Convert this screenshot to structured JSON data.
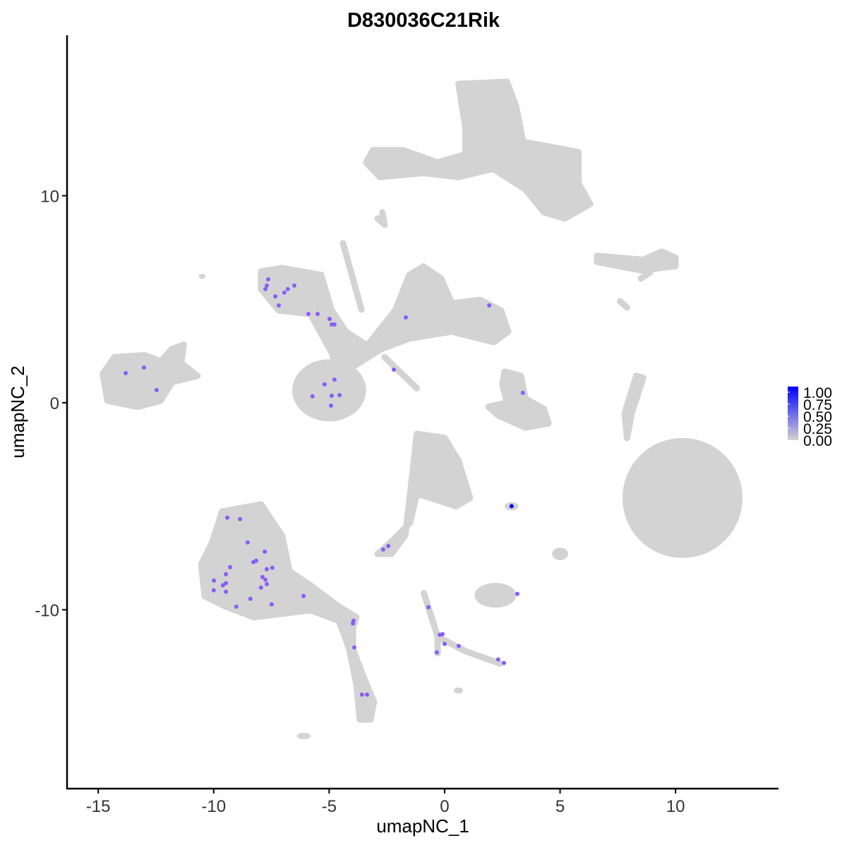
{
  "chart_data": {
    "type": "scatter",
    "title": "D830036C21Rik",
    "xlabel": "umapNC_1",
    "ylabel": "umapNC_2",
    "xlim": [
      -16.35,
      14.46
    ],
    "ylim": [
      -18.64,
      17.75
    ],
    "xticks": [
      -15,
      -10,
      -5,
      0,
      5,
      10
    ],
    "xtick_labels": [
      "-15",
      "-10",
      "-5",
      "0",
      "5",
      "10"
    ],
    "yticks": [
      -10,
      0,
      10
    ],
    "ytick_labels": [
      "-10",
      "0",
      "10"
    ],
    "grid": false,
    "legend": {
      "position": "right",
      "type": "colorbar",
      "labels": [
        "1.00",
        "0.75",
        "0.50",
        "0.25",
        "0.00"
      ],
      "range": [
        0,
        1
      ],
      "low_color": "#d3d3d3",
      "high_color": "#0000ff"
    },
    "colors": {
      "background_cells": "#d3d3d3",
      "expressed": "#8a5cf6",
      "max": "#0a0af0"
    },
    "clusters": [
      {
        "name": "top",
        "poly": [
          [
            0.6,
            15.4
          ],
          [
            2.7,
            15.5
          ],
          [
            3.1,
            14.3
          ],
          [
            3.4,
            12.6
          ],
          [
            4.9,
            12.3
          ],
          [
            5.8,
            12.1
          ],
          [
            5.8,
            10.6
          ],
          [
            6.3,
            9.6
          ],
          [
            5.2,
            8.9
          ],
          [
            4.3,
            9.2
          ],
          [
            3.5,
            10.3
          ],
          [
            2.1,
            11.3
          ],
          [
            0.6,
            10.9
          ],
          [
            -0.9,
            11.1
          ],
          [
            -2.8,
            10.9
          ],
          [
            -3.4,
            11.6
          ],
          [
            -3.1,
            12.2
          ],
          [
            -1.8,
            12.2
          ],
          [
            -0.3,
            11.6
          ],
          [
            0.9,
            12.0
          ],
          [
            0.9,
            13.3
          ]
        ]
      },
      {
        "name": "right-strip",
        "poly": [
          [
            6.6,
            7.1
          ],
          [
            8.6,
            6.9
          ],
          [
            9.4,
            7.3
          ],
          [
            10.0,
            7.0
          ],
          [
            10.0,
            6.6
          ],
          [
            8.5,
            6.4
          ],
          [
            6.6,
            6.8
          ]
        ]
      },
      {
        "name": "right-big",
        "ellipse": [
          10.3,
          -4.6,
          2.6,
          2.9
        ]
      },
      {
        "name": "right-thin",
        "poly": [
          [
            8.3,
            1.3
          ],
          [
            8.6,
            1.2
          ],
          [
            8.1,
            -0.5
          ],
          [
            7.9,
            -1.7
          ],
          [
            7.8,
            -0.5
          ]
        ]
      },
      {
        "name": "left",
        "poly": [
          [
            -14.8,
            1.4
          ],
          [
            -14.3,
            2.2
          ],
          [
            -13,
            2.3
          ],
          [
            -12.3,
            2.0
          ],
          [
            -11.8,
            2.6
          ],
          [
            -11.3,
            2.8
          ],
          [
            -11.4,
            1.9
          ],
          [
            -10.7,
            1.3
          ],
          [
            -11.8,
            1.0
          ],
          [
            -12.3,
            0.1
          ],
          [
            -13.3,
            -0.2
          ],
          [
            -14.6,
            0.1
          ]
        ]
      },
      {
        "name": "middle-loop",
        "ellipse": [
          -5.0,
          0.6,
          1.6,
          1.5
        ]
      },
      {
        "name": "middle-body",
        "poly": [
          [
            -7.95,
            6.34
          ],
          [
            -7.03,
            6.51
          ],
          [
            -5.35,
            6.17
          ],
          [
            -4.89,
            4.46
          ],
          [
            -4.28,
            3.44
          ],
          [
            -3.36,
            2.76
          ],
          [
            -2.14,
            4.46
          ],
          [
            -1.53,
            6.17
          ],
          [
            -0.92,
            6.58
          ],
          [
            -0.15,
            6.0
          ],
          [
            0.31,
            4.8
          ],
          [
            1.53,
            4.97
          ],
          [
            2.44,
            4.46
          ],
          [
            2.75,
            3.44
          ],
          [
            2.14,
            2.93
          ],
          [
            0.31,
            3.44
          ],
          [
            -1.53,
            3.1
          ],
          [
            -2.75,
            2.59
          ],
          [
            -3.97,
            1.74
          ],
          [
            -4.58,
            1.4
          ],
          [
            -4.89,
            2.42
          ],
          [
            -5.81,
            4.29
          ],
          [
            -7.18,
            4.46
          ],
          [
            -7.95,
            5.49
          ]
        ]
      },
      {
        "name": "middle-spike",
        "line": [
          [
            -4.4,
            7.7
          ],
          [
            -3.6,
            4.5
          ]
        ]
      },
      {
        "name": "middle-tail",
        "line": [
          [
            -2.6,
            2.2
          ],
          [
            -1.2,
            0.7
          ]
        ]
      },
      {
        "name": "small-right",
        "poly": [
          [
            2.6,
            1.5
          ],
          [
            3.3,
            1.3
          ],
          [
            3.5,
            0.2
          ],
          [
            4.3,
            -0.3
          ],
          [
            4.5,
            -1.0
          ],
          [
            3.5,
            -1.2
          ],
          [
            2.3,
            -0.6
          ],
          [
            1.9,
            -0.2
          ],
          [
            2.7,
            0.0
          ],
          [
            2.5,
            0.9
          ]
        ]
      },
      {
        "name": "lower-mid",
        "poly": [
          [
            -1.2,
            -1.5
          ],
          [
            0.0,
            -1.7
          ],
          [
            0.6,
            -2.8
          ],
          [
            1.1,
            -4.6
          ],
          [
            0.5,
            -5.0
          ],
          [
            -0.6,
            -4.6
          ],
          [
            -1.2,
            -4.4
          ],
          [
            -1.5,
            -5.8
          ],
          [
            -2.2,
            -6.6
          ],
          [
            -2.9,
            -7.3
          ],
          [
            -2.3,
            -7.3
          ],
          [
            -1.7,
            -6.4
          ],
          [
            -1.4,
            -3.5
          ]
        ]
      },
      {
        "name": "dot",
        "ellipse": [
          2.9,
          -5.0,
          0.3,
          0.2
        ]
      },
      {
        "name": "lower-left",
        "poly": [
          [
            -9.63,
            -5.25
          ],
          [
            -7.95,
            -4.91
          ],
          [
            -7.03,
            -6.44
          ],
          [
            -6.72,
            -8.14
          ],
          [
            -5.81,
            -8.82
          ],
          [
            -4.58,
            -9.85
          ],
          [
            -3.82,
            -10.36
          ],
          [
            -3.97,
            -10.87
          ],
          [
            -3.97,
            -11.89
          ],
          [
            -3.51,
            -13.25
          ],
          [
            -3.06,
            -14.45
          ],
          [
            -3.21,
            -15.3
          ],
          [
            -3.67,
            -15.3
          ],
          [
            -3.82,
            -13.6
          ],
          [
            -4.13,
            -11.89
          ],
          [
            -4.58,
            -10.53
          ],
          [
            -5.81,
            -10.02
          ],
          [
            -7.03,
            -10.19
          ],
          [
            -8.25,
            -10.36
          ],
          [
            -9.47,
            -9.85
          ],
          [
            -10.39,
            -9.34
          ],
          [
            -10.54,
            -7.8
          ],
          [
            -10.09,
            -6.8
          ]
        ]
      },
      {
        "name": "lower-right-small",
        "ellipse": [
          2.2,
          -9.3,
          0.9,
          0.6
        ]
      },
      {
        "name": "y-branch-a",
        "line": [
          [
            -0.9,
            -9.2
          ],
          [
            -0.3,
            -11.3
          ],
          [
            0.9,
            -12.0
          ],
          [
            2.4,
            -12.6
          ]
        ]
      },
      {
        "name": "y-branch-b",
        "line": [
          [
            -0.3,
            -11.3
          ],
          [
            -0.3,
            -12.1
          ]
        ]
      },
      {
        "name": "blob",
        "ellipse": [
          5.0,
          -7.3,
          0.35,
          0.3
        ]
      },
      {
        "name": "speck-a",
        "line": [
          [
            -2.9,
            8.9
          ],
          [
            -2.6,
            8.6
          ],
          [
            -2.7,
            9.2
          ]
        ]
      },
      {
        "name": "speck-b",
        "ellipse": [
          -6.1,
          -16.1,
          0.3,
          0.15
        ]
      },
      {
        "name": "speck-c",
        "ellipse": [
          0.6,
          -13.9,
          0.2,
          0.15
        ]
      },
      {
        "name": "speck-d",
        "ellipse": [
          -10.5,
          6.1,
          0.15,
          0.12
        ]
      },
      {
        "name": "speck-e",
        "line": [
          [
            8.5,
            6.0
          ],
          [
            8.9,
            6.3
          ]
        ]
      },
      {
        "name": "speck-f",
        "line": [
          [
            7.6,
            4.9
          ],
          [
            7.9,
            4.6
          ]
        ]
      }
    ],
    "expressed_points": [
      [
        -7.64,
        5.96,
        0.6
      ],
      [
        -7.7,
        5.66,
        0.6
      ],
      [
        -7.76,
        5.49,
        0.6
      ],
      [
        -7.33,
        5.14,
        0.6
      ],
      [
        -7.18,
        4.7,
        0.6
      ],
      [
        -6.94,
        5.32,
        0.6
      ],
      [
        -6.79,
        5.49,
        0.6
      ],
      [
        -6.51,
        5.66,
        0.6
      ],
      [
        -5.9,
        4.29,
        0.6
      ],
      [
        -5.5,
        4.29,
        0.6
      ],
      [
        -4.98,
        4.05,
        0.6
      ],
      [
        -4.89,
        3.78,
        0.6
      ],
      [
        -4.77,
        3.78,
        0.6
      ],
      [
        -1.68,
        4.12,
        0.6
      ],
      [
        1.93,
        4.7,
        0.6
      ],
      [
        -2.2,
        1.6,
        0.6
      ],
      [
        3.39,
        0.48,
        0.6
      ],
      [
        -13.81,
        1.43,
        0.6
      ],
      [
        -13.02,
        1.7,
        0.6
      ],
      [
        -12.47,
        0.61,
        0.6
      ],
      [
        -5.2,
        0.89,
        0.6
      ],
      [
        -4.77,
        1.12,
        0.6
      ],
      [
        -5.72,
        0.31,
        0.6
      ],
      [
        -4.89,
        0.34,
        0.6
      ],
      [
        -4.55,
        0.37,
        0.6
      ],
      [
        -4.92,
        -0.14,
        0.6
      ],
      [
        -9.41,
        -5.55,
        0.6
      ],
      [
        -8.86,
        -5.62,
        0.6
      ],
      [
        -8.53,
        -6.75,
        0.6
      ],
      [
        -7.79,
        -7.19,
        0.6
      ],
      [
        -8.28,
        -7.7,
        0.6
      ],
      [
        -8.16,
        -7.63,
        0.6
      ],
      [
        -9.29,
        -7.94,
        0.6
      ],
      [
        -9.47,
        -8.28,
        0.6
      ],
      [
        -9.99,
        -8.59,
        0.6
      ],
      [
        -9.47,
        -8.72,
        0.6
      ],
      [
        -9.6,
        -8.82,
        0.6
      ],
      [
        -10.0,
        -9.06,
        0.6
      ],
      [
        -9.47,
        -9.13,
        0.6
      ],
      [
        -8.41,
        -9.47,
        0.6
      ],
      [
        -9.02,
        -9.85,
        0.6
      ],
      [
        -7.7,
        -8.04,
        0.6
      ],
      [
        -7.46,
        -7.97,
        0.6
      ],
      [
        -7.89,
        -8.42,
        0.6
      ],
      [
        -7.76,
        -8.55,
        0.6
      ],
      [
        -7.7,
        -8.76,
        0.6
      ],
      [
        -7.95,
        -8.93,
        0.6
      ],
      [
        -7.49,
        -9.74,
        0.6
      ],
      [
        -6.11,
        -9.34,
        0.6
      ],
      [
        -3.94,
        -10.53,
        0.6
      ],
      [
        -3.97,
        -10.66,
        0.6
      ],
      [
        -3.91,
        -11.82,
        0.6
      ],
      [
        -3.58,
        -14.1,
        0.6
      ],
      [
        -3.36,
        -14.1,
        0.6
      ],
      [
        -2.66,
        -7.09,
        0.6
      ],
      [
        -2.44,
        -6.92,
        0.6
      ],
      [
        -0.7,
        -9.88,
        0.6
      ],
      [
        -0.21,
        -11.21,
        0.6
      ],
      [
        -0.09,
        -11.18,
        0.6
      ],
      [
        0.0,
        -11.65,
        0.6
      ],
      [
        -0.34,
        -12.06,
        0.6
      ],
      [
        0.61,
        -11.75,
        0.6
      ],
      [
        2.32,
        -12.4,
        0.6
      ],
      [
        2.57,
        -12.57,
        0.6
      ],
      [
        3.15,
        -9.23,
        0.6
      ],
      [
        2.9,
        -5.0,
        1.0
      ]
    ]
  }
}
